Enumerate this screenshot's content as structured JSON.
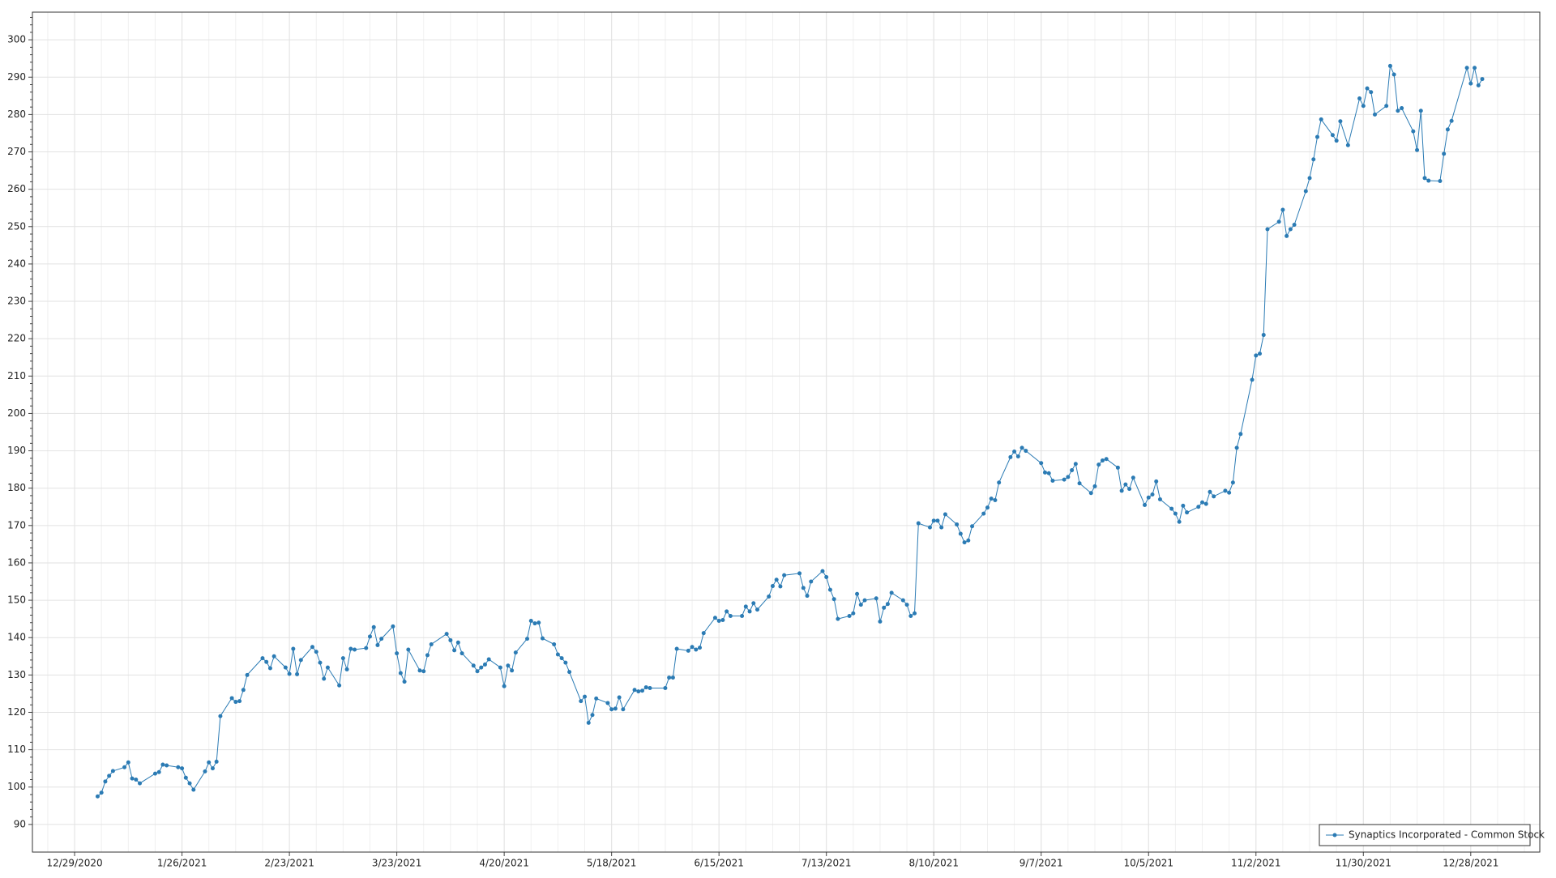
{
  "chart_data": {
    "type": "line",
    "x": [
      "2021-01-04",
      "2021-01-05",
      "2021-01-06",
      "2021-01-07",
      "2021-01-08",
      "2021-01-11",
      "2021-01-12",
      "2021-01-13",
      "2021-01-14",
      "2021-01-15",
      "2021-01-19",
      "2021-01-20",
      "2021-01-21",
      "2021-01-22",
      "2021-01-25",
      "2021-01-26",
      "2021-01-27",
      "2021-01-28",
      "2021-01-29",
      "2021-02-01",
      "2021-02-02",
      "2021-02-03",
      "2021-02-04",
      "2021-02-05",
      "2021-02-08",
      "2021-02-09",
      "2021-02-10",
      "2021-02-11",
      "2021-02-12",
      "2021-02-16",
      "2021-02-17",
      "2021-02-18",
      "2021-02-19",
      "2021-02-22",
      "2021-02-23",
      "2021-02-24",
      "2021-02-25",
      "2021-02-26",
      "2021-03-01",
      "2021-03-02",
      "2021-03-03",
      "2021-03-04",
      "2021-03-05",
      "2021-03-08",
      "2021-03-09",
      "2021-03-10",
      "2021-03-11",
      "2021-03-12",
      "2021-03-15",
      "2021-03-16",
      "2021-03-17",
      "2021-03-18",
      "2021-03-19",
      "2021-03-22",
      "2021-03-23",
      "2021-03-24",
      "2021-03-25",
      "2021-03-26",
      "2021-03-29",
      "2021-03-30",
      "2021-03-31",
      "2021-04-01",
      "2021-04-05",
      "2021-04-06",
      "2021-04-07",
      "2021-04-08",
      "2021-04-09",
      "2021-04-12",
      "2021-04-13",
      "2021-04-14",
      "2021-04-15",
      "2021-04-16",
      "2021-04-19",
      "2021-04-20",
      "2021-04-21",
      "2021-04-22",
      "2021-04-23",
      "2021-04-26",
      "2021-04-27",
      "2021-04-28",
      "2021-04-29",
      "2021-04-30",
      "2021-05-03",
      "2021-05-04",
      "2021-05-05",
      "2021-05-06",
      "2021-05-07",
      "2021-05-10",
      "2021-05-11",
      "2021-05-12",
      "2021-05-13",
      "2021-05-14",
      "2021-05-17",
      "2021-05-18",
      "2021-05-19",
      "2021-05-20",
      "2021-05-21",
      "2021-05-24",
      "2021-05-25",
      "2021-05-26",
      "2021-05-27",
      "2021-05-28",
      "2021-06-01",
      "2021-06-02",
      "2021-06-03",
      "2021-06-04",
      "2021-06-07",
      "2021-06-08",
      "2021-06-09",
      "2021-06-10",
      "2021-06-11",
      "2021-06-14",
      "2021-06-15",
      "2021-06-16",
      "2021-06-17",
      "2021-06-18",
      "2021-06-21",
      "2021-06-22",
      "2021-06-23",
      "2021-06-24",
      "2021-06-25",
      "2021-06-28",
      "2021-06-29",
      "2021-06-30",
      "2021-07-01",
      "2021-07-02",
      "2021-07-06",
      "2021-07-07",
      "2021-07-08",
      "2021-07-09",
      "2021-07-12",
      "2021-07-13",
      "2021-07-14",
      "2021-07-15",
      "2021-07-16",
      "2021-07-19",
      "2021-07-20",
      "2021-07-21",
      "2021-07-22",
      "2021-07-23",
      "2021-07-26",
      "2021-07-27",
      "2021-07-28",
      "2021-07-29",
      "2021-07-30",
      "2021-08-02",
      "2021-08-03",
      "2021-08-04",
      "2021-08-05",
      "2021-08-06",
      "2021-08-09",
      "2021-08-10",
      "2021-08-11",
      "2021-08-12",
      "2021-08-13",
      "2021-08-16",
      "2021-08-17",
      "2021-08-18",
      "2021-08-19",
      "2021-08-20",
      "2021-08-23",
      "2021-08-24",
      "2021-08-25",
      "2021-08-26",
      "2021-08-27",
      "2021-08-30",
      "2021-08-31",
      "2021-09-01",
      "2021-09-02",
      "2021-09-03",
      "2021-09-07",
      "2021-09-08",
      "2021-09-09",
      "2021-09-10",
      "2021-09-13",
      "2021-09-14",
      "2021-09-15",
      "2021-09-16",
      "2021-09-17",
      "2021-09-20",
      "2021-09-21",
      "2021-09-22",
      "2021-09-23",
      "2021-09-24",
      "2021-09-27",
      "2021-09-28",
      "2021-09-29",
      "2021-09-30",
      "2021-10-01",
      "2021-10-04",
      "2021-10-05",
      "2021-10-06",
      "2021-10-07",
      "2021-10-08",
      "2021-10-11",
      "2021-10-12",
      "2021-10-13",
      "2021-10-14",
      "2021-10-15",
      "2021-10-18",
      "2021-10-19",
      "2021-10-20",
      "2021-10-21",
      "2021-10-22",
      "2021-10-25",
      "2021-10-26",
      "2021-10-27",
      "2021-10-28",
      "2021-10-29",
      "2021-11-01",
      "2021-11-02",
      "2021-11-03",
      "2021-11-04",
      "2021-11-05",
      "2021-11-08",
      "2021-11-09",
      "2021-11-10",
      "2021-11-11",
      "2021-11-12",
      "2021-11-15",
      "2021-11-16",
      "2021-11-17",
      "2021-11-18",
      "2021-11-19",
      "2021-11-22",
      "2021-11-23",
      "2021-11-24",
      "2021-11-26",
      "2021-11-29",
      "2021-11-30",
      "2021-12-01",
      "2021-12-02",
      "2021-12-03",
      "2021-12-06",
      "2021-12-07",
      "2021-12-08",
      "2021-12-09",
      "2021-12-10",
      "2021-12-13",
      "2021-12-14",
      "2021-12-15",
      "2021-12-16",
      "2021-12-17",
      "2021-12-20",
      "2021-12-21",
      "2021-12-22",
      "2021-12-23",
      "2021-12-27",
      "2021-12-28",
      "2021-12-29",
      "2021-12-30",
      "2021-12-31"
    ],
    "series": [
      {
        "name": "Synaptics Incorporated - Common Stock",
        "color": "#2b7bb4",
        "values": [
          97.5,
          98.5,
          101.5,
          103,
          104.3,
          105.3,
          106.6,
          102.3,
          102,
          101,
          103.6,
          104,
          106,
          105.8,
          105.3,
          105,
          102.5,
          101,
          99.3,
          104.2,
          106.6,
          105,
          106.8,
          119,
          123.8,
          122.8,
          123,
          126,
          130,
          134.5,
          133.5,
          131.8,
          135,
          132,
          130.3,
          137,
          130.2,
          134,
          137.5,
          136.2,
          133.3,
          129,
          132,
          127.2,
          134.5,
          131.5,
          137,
          136.8,
          137.2,
          140.3,
          142.8,
          138,
          139.7,
          143,
          135.8,
          130.5,
          128.2,
          136.8,
          131.2,
          131,
          135.3,
          138.2,
          141,
          139.3,
          136.6,
          138.7,
          135.8,
          132.5,
          131,
          132,
          132.8,
          134.2,
          132,
          127,
          132.5,
          131.2,
          136,
          139.7,
          144.5,
          143.8,
          144,
          139.8,
          138.2,
          135.5,
          134.5,
          133.3,
          130.8,
          123,
          124.2,
          117.2,
          119.3,
          123.7,
          122.5,
          120.8,
          121,
          124,
          120.8,
          126,
          125.6,
          125.8,
          126.7,
          126.5,
          126.5,
          129.3,
          129.3,
          137,
          136.5,
          137.5,
          136.8,
          137.3,
          141.2,
          145.3,
          144.5,
          144.7,
          147,
          145.8,
          145.8,
          148.3,
          147,
          149.2,
          147.5,
          151,
          153.8,
          155.5,
          153.7,
          156.7,
          157.2,
          153.3,
          151.2,
          155,
          157.8,
          156.2,
          152.8,
          150.3,
          145,
          145.8,
          146.5,
          151.7,
          148.8,
          150,
          150.5,
          144.3,
          148,
          149,
          152,
          150,
          148.8,
          145.8,
          146.5,
          170.6,
          169.5,
          171.3,
          171.3,
          169.5,
          173,
          170.3,
          167.8,
          165.5,
          166,
          169.8,
          173.2,
          174.8,
          177.2,
          176.8,
          181.5,
          188.3,
          189.8,
          188.5,
          190.8,
          190,
          186.7,
          184.2,
          184,
          182,
          182.3,
          183,
          184.8,
          186.5,
          181.3,
          178.7,
          180.5,
          186.3,
          187.4,
          187.8,
          185.5,
          179.3,
          181,
          179.8,
          182.8,
          175.5,
          177.5,
          178.3,
          181.8,
          177,
          174.5,
          173.2,
          171,
          175.3,
          173.5,
          175,
          176.2,
          175.8,
          179,
          177.8,
          179.3,
          178.8,
          181.5,
          190.8,
          194.5,
          209,
          215.5,
          216,
          221,
          249.3,
          251.3,
          254.5,
          247.5,
          249.3,
          250.5,
          259.5,
          263,
          268,
          274,
          278.7,
          274.5,
          273,
          278.2,
          271.8,
          284.3,
          282.3,
          287,
          286,
          280,
          282.3,
          293,
          290.7,
          281,
          281.7,
          275.5,
          270.5,
          281,
          263,
          262.3,
          262.2,
          269.5,
          276,
          278.3,
          292.5,
          288.3,
          292.5,
          287.8,
          289.5
        ]
      }
    ],
    "xlim": [
      "2020-12-18",
      "2022-01-15"
    ],
    "xticks": [
      {
        "value": "2020-12-29",
        "label": "12/29/2020"
      },
      {
        "value": "2021-01-26",
        "label": "1/26/2021"
      },
      {
        "value": "2021-02-23",
        "label": "2/23/2021"
      },
      {
        "value": "2021-03-23",
        "label": "3/23/2021"
      },
      {
        "value": "2021-04-20",
        "label": "4/20/2021"
      },
      {
        "value": "2021-05-18",
        "label": "5/18/2021"
      },
      {
        "value": "2021-06-15",
        "label": "6/15/2021"
      },
      {
        "value": "2021-07-13",
        "label": "7/13/2021"
      },
      {
        "value": "2021-08-10",
        "label": "8/10/2021"
      },
      {
        "value": "2021-09-07",
        "label": "9/7/2021"
      },
      {
        "value": "2021-10-05",
        "label": "10/5/2021"
      },
      {
        "value": "2021-11-02",
        "label": "11/2/2021"
      },
      {
        "value": "2021-11-30",
        "label": "11/30/2021"
      },
      {
        "value": "2021-12-28",
        "label": "12/28/2021"
      }
    ],
    "ylim": [
      82.6,
      307.4
    ],
    "yticks": [
      90,
      100,
      110,
      120,
      130,
      140,
      150,
      160,
      170,
      180,
      190,
      200,
      210,
      220,
      230,
      240,
      250,
      260,
      270,
      280,
      290,
      300
    ],
    "grid": true,
    "legend": "bottom-right"
  }
}
